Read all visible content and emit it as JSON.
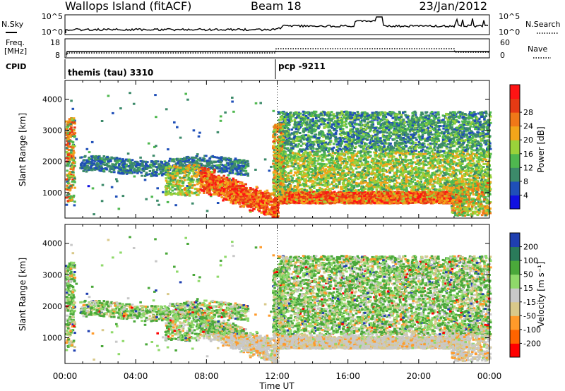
{
  "header": {
    "title_left": "Wallops Island (fitACF)",
    "title_mid": "Beam 18",
    "title_right": "23/Jan/2012"
  },
  "noise_panel": {
    "left_label": "N.Sky",
    "left_ticks": [
      "10^5",
      "10^0"
    ],
    "right_ticks": [
      "10^5",
      "10^0"
    ],
    "right_label": "N.Search"
  },
  "freq_panel": {
    "left_label_1": "Freq.",
    "left_label_2": "[MHz]",
    "left_ticks": [
      "18",
      "8"
    ],
    "right_ticks": [
      "60",
      "0"
    ],
    "right_label": "Nave"
  },
  "cpid_panel": {
    "label": "CPID",
    "segments": [
      "themis (tau) 3310",
      "pcp -9211"
    ]
  },
  "colors": {
    "power_scale": [
      "#1010e0",
      "#1f4fb8",
      "#3c8a6a",
      "#4fb84f",
      "#9ad23a",
      "#f2a51a",
      "#f07818",
      "#e63a14",
      "#ff1414"
    ],
    "velocity_scale": [
      "#ff0000",
      "#ff6400",
      "#ff9a2a",
      "#d9c98a",
      "#c8c8c8",
      "#8fd96a",
      "#4aa83a",
      "#2a7a5a",
      "#1f3fb0"
    ]
  },
  "chart_data": [
    {
      "type": "heatmap",
      "name": "power",
      "xlabel": "",
      "ylabel": "Slant Range [km]",
      "xlim": [
        0,
        24
      ],
      "ylim": [
        180,
        4600
      ],
      "x_ticks": [
        "00:00",
        "04:00",
        "08:00",
        "12:00",
        "16:00",
        "20:00",
        "00:00"
      ],
      "y_ticks": [
        "1000",
        "2000",
        "3000",
        "4000"
      ],
      "colorbar": {
        "label": "Power [dB]",
        "ticks": [
          "4",
          "8",
          "12",
          "16",
          "20",
          "24",
          "28"
        ]
      },
      "regions": [
        {
          "t": [
            0.0,
            0.6
          ],
          "r": [
            700,
            3400
          ],
          "level": "low-high mixed"
        },
        {
          "t": [
            1.0,
            10.5
          ],
          "r": [
            1500,
            2200
          ],
          "level": "low"
        },
        {
          "t": [
            6.0,
            7.5
          ],
          "r": [
            900,
            1900
          ],
          "level": "medium"
        },
        {
          "t": [
            7.5,
            12.0
          ],
          "r": [
            200,
            1200
          ],
          "level": "high"
        },
        {
          "t": [
            12.0,
            22.5
          ],
          "r": [
            600,
            1100
          ],
          "level": "high"
        },
        {
          "t": [
            12.0,
            24.0
          ],
          "r": [
            1100,
            3600
          ],
          "level": "low-medium"
        }
      ]
    },
    {
      "type": "heatmap",
      "name": "velocity",
      "xlabel": "Time UT",
      "ylabel": "Slant Range [km]",
      "xlim": [
        0,
        24
      ],
      "ylim": [
        180,
        4600
      ],
      "x_ticks": [
        "00:00",
        "04:00",
        "08:00",
        "12:00",
        "16:00",
        "20:00",
        "00:00"
      ],
      "y_ticks": [
        "1000",
        "2000",
        "3000",
        "4000"
      ],
      "colorbar": {
        "label": "Velocity [m s⁻¹]",
        "ticks": [
          "200",
          "100",
          "50",
          "15",
          "-15",
          "-50",
          "-100",
          "-200"
        ]
      }
    }
  ]
}
